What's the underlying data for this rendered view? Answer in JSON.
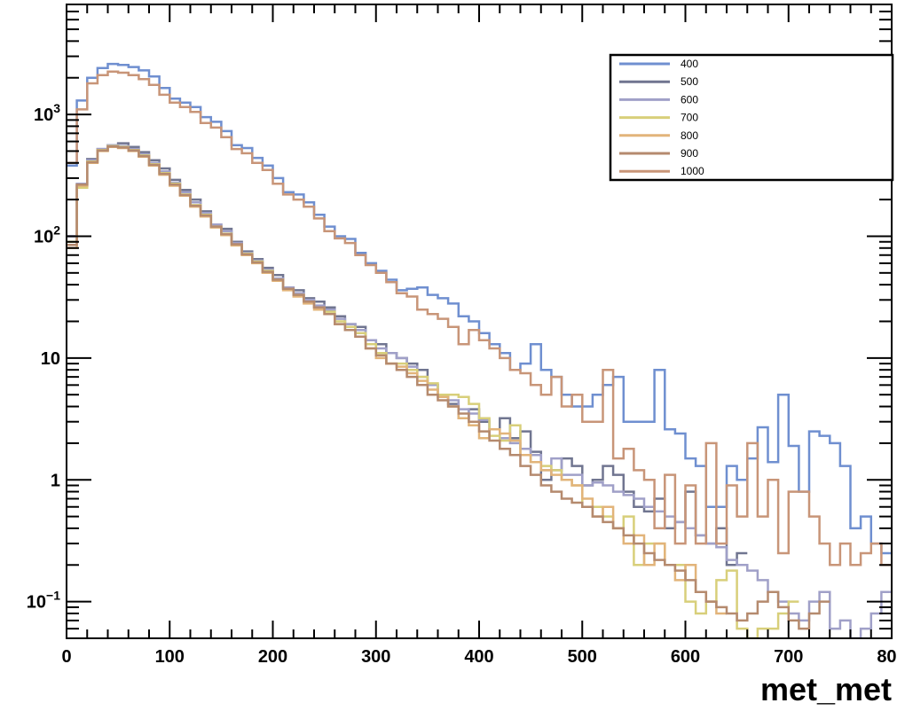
{
  "chart_data": {
    "type": "line",
    "xlabel": "met_met",
    "ylabel": "",
    "x_range": [
      0,
      800
    ],
    "y_range": [
      0.05,
      8000
    ],
    "y_scale": "log",
    "bin_width": 10,
    "legend_placement": "top-right",
    "x_ticks": [
      "0",
      "100",
      "200",
      "300",
      "400",
      "500",
      "600",
      "700",
      "800"
    ],
    "y_ticks": [
      {
        "value": 0.1,
        "base": "10",
        "exp": "−1"
      },
      {
        "value": 1,
        "base": "1",
        "exp": ""
      },
      {
        "value": 10,
        "base": "10",
        "exp": ""
      },
      {
        "value": 100,
        "base": "10",
        "exp": "2"
      },
      {
        "value": 1000,
        "base": "10",
        "exp": "3"
      }
    ],
    "series": [
      {
        "name": "400",
        "color": "#6f8fd0",
        "values": [
          380,
          1300,
          2000,
          2400,
          2600,
          2550,
          2450,
          2300,
          2050,
          1650,
          1350,
          1250,
          1150,
          950,
          870,
          730,
          560,
          530,
          440,
          380,
          300,
          230,
          220,
          190,
          150,
          120,
          100,
          95,
          73,
          60,
          52,
          44,
          36,
          37,
          38,
          33,
          31,
          28,
          22,
          20,
          16,
          13,
          11,
          8,
          9,
          13,
          8,
          7,
          5,
          4,
          4,
          5,
          6,
          7,
          3,
          3,
          3,
          8,
          2.6,
          2.4,
          1.5,
          1.3,
          0.6,
          0.6,
          1.3,
          1,
          1.5,
          2.7,
          1.4,
          5,
          1.9,
          0.8,
          2.5,
          2.3,
          2,
          1.3,
          0.4,
          0.5,
          0.3,
          0.25
        ]
      },
      {
        "name": "500",
        "color": "#707590",
        "values": [
          100,
          260,
          430,
          520,
          560,
          580,
          540,
          490,
          420,
          360,
          290,
          240,
          200,
          160,
          125,
          115,
          90,
          75,
          65,
          55,
          48,
          38,
          36,
          31,
          29,
          26,
          22,
          19,
          18,
          14,
          13,
          11,
          10,
          9,
          8,
          6,
          5,
          4.2,
          3.2,
          3.8,
          3,
          2.6,
          3.2,
          2.2,
          2.5,
          1.7,
          1,
          1.2,
          1.5,
          1.3,
          0.9,
          1,
          1.3,
          1.1,
          0.8,
          0.6,
          0.55,
          0.7,
          0.4,
          0.45,
          0.8,
          0.35,
          0.3,
          0.4,
          0.2,
          0.25
        ]
      },
      {
        "name": "600",
        "color": "#a0a0c8",
        "values": [
          100,
          270,
          420,
          520,
          560,
          550,
          520,
          470,
          400,
          340,
          275,
          230,
          190,
          155,
          125,
          110,
          88,
          73,
          63,
          53,
          45,
          38,
          34,
          30,
          27,
          25,
          21,
          19,
          17,
          14,
          12,
          11,
          10,
          8.5,
          7,
          6,
          5,
          4.5,
          3.8,
          3.5,
          3.1,
          2.6,
          2.2,
          2,
          1.8,
          1.6,
          1.2,
          1.5,
          1.1,
          1.1,
          0.9,
          0.95,
          0.9,
          0.8,
          0.75,
          0.7,
          0.6,
          0.55,
          0.5,
          0.45,
          0.4,
          0.35,
          0.3,
          0.28,
          0.22,
          0.2,
          0.18,
          0.15,
          0.12,
          0.1,
          0.08,
          0.07,
          0.1,
          0.12,
          0.06,
          0.07,
          0.05,
          0.06,
          0.08,
          0.12
        ]
      },
      {
        "name": "700",
        "color": "#d8cf7a",
        "values": [
          90,
          250,
          410,
          510,
          550,
          540,
          510,
          460,
          390,
          330,
          270,
          220,
          180,
          150,
          120,
          105,
          85,
          72,
          62,
          52,
          44,
          37,
          33,
          29,
          26,
          24,
          20,
          18,
          16,
          13,
          11,
          9,
          9,
          8,
          7,
          6.2,
          5,
          5,
          4.8,
          4.2,
          3.2,
          2.3,
          2.1,
          2.8,
          1.6,
          1.4,
          1.3,
          1.2,
          1,
          0.9,
          0.6,
          0.6,
          0.5,
          0.4,
          0.5,
          0.2,
          0.3,
          0.3,
          0.2,
          0.2,
          0.1,
          0.08,
          0.1,
          0.15,
          0.18,
          0.06,
          0.05,
          0.06,
          0.06,
          0.08,
          0.1
        ]
      },
      {
        "name": "800",
        "color": "#e2b47a",
        "values": [
          80,
          260,
          400,
          500,
          540,
          530,
          500,
          450,
          380,
          320,
          260,
          215,
          175,
          145,
          118,
          102,
          84,
          70,
          60,
          50,
          43,
          36,
          32,
          28,
          25,
          23,
          19,
          17,
          15,
          12,
          10,
          9,
          8.5,
          7.5,
          6.5,
          5.5,
          4.8,
          4,
          3.2,
          2.8,
          2.2,
          2.6,
          2.4,
          2.1,
          1.6,
          1.4,
          1.2,
          1.1,
          1,
          0.9,
          0.7,
          0.5,
          0.6,
          0.4,
          0.3,
          0.35,
          0.2,
          0.3,
          0.2,
          0.15,
          0.2,
          0.12,
          0.1,
          0.08
        ]
      },
      {
        "name": "900",
        "color": "#b58a6e",
        "values": [
          85,
          265,
          405,
          505,
          545,
          535,
          505,
          455,
          385,
          325,
          265,
          218,
          178,
          148,
          120,
          104,
          86,
          71,
          61,
          51,
          44,
          37,
          33,
          29,
          26,
          23,
          19,
          17,
          15,
          12,
          10.5,
          9,
          8,
          7,
          6,
          5,
          4.5,
          4,
          3.5,
          3,
          2.5,
          2.1,
          1.8,
          1.6,
          1.3,
          1.1,
          0.9,
          0.8,
          0.7,
          0.65,
          0.6,
          0.5,
          0.45,
          0.4,
          0.35,
          0.3,
          0.25,
          0.22,
          0.2,
          0.18,
          0.15,
          0.12,
          0.1,
          0.09,
          0.08,
          0.07,
          0.08,
          0.1,
          0.12,
          0.09,
          0.07,
          0.06,
          0.08,
          0.1
        ]
      },
      {
        "name": "1000",
        "color": "#c89578",
        "values": [
          400,
          1100,
          1800,
          2100,
          2250,
          2200,
          2100,
          1950,
          1750,
          1450,
          1250,
          1150,
          1050,
          850,
          780,
          650,
          520,
          480,
          400,
          350,
          270,
          220,
          200,
          175,
          140,
          110,
          96,
          88,
          70,
          58,
          50,
          42,
          34,
          32,
          25,
          23,
          21,
          18,
          13,
          17,
          14,
          12,
          10,
          8,
          7.5,
          6,
          5,
          7,
          4,
          5,
          3,
          3,
          8,
          1.5,
          1.8,
          1.2,
          1,
          0.4,
          1.1,
          0.3,
          0.9,
          0.3,
          2,
          0.3,
          0.9,
          0.5,
          2,
          0.5,
          1,
          0.25,
          0.8,
          0.8,
          0.5,
          0.3,
          0.2,
          0.3,
          0.2,
          0.25,
          0.3,
          0.2
        ]
      }
    ]
  }
}
